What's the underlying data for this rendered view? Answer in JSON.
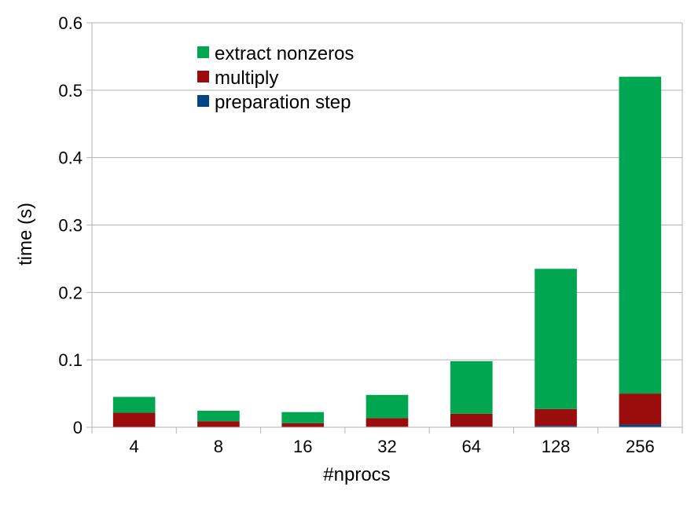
{
  "chart_data": {
    "type": "bar",
    "stacked": true,
    "categories": [
      "4",
      "8",
      "16",
      "32",
      "64",
      "128",
      "256"
    ],
    "series": [
      {
        "name": "preparation step",
        "color": "#004586",
        "values": [
          0.0005,
          0.0005,
          0.0005,
          0.0008,
          0.001,
          0.002,
          0.004
        ]
      },
      {
        "name": "multiply",
        "color": "#9b0c0c",
        "values": [
          0.021,
          0.0085,
          0.0055,
          0.0127,
          0.019,
          0.025,
          0.046
        ]
      },
      {
        "name": "extract nonzeros",
        "color": "#00a650",
        "values": [
          0.0235,
          0.0155,
          0.0165,
          0.0345,
          0.078,
          0.208,
          0.47
        ]
      }
    ],
    "legend_order": [
      "extract nonzeros",
      "multiply",
      "preparation step"
    ],
    "xlabel": "#nprocs",
    "ylabel": "time (s)",
    "ylim": [
      0,
      0.6
    ],
    "yticks": [
      "0",
      "0.1",
      "0.2",
      "0.3",
      "0.4",
      "0.5",
      "0.6"
    ],
    "grid": true,
    "gridColor": "#b3b3b3",
    "legend_position": "top-left"
  }
}
